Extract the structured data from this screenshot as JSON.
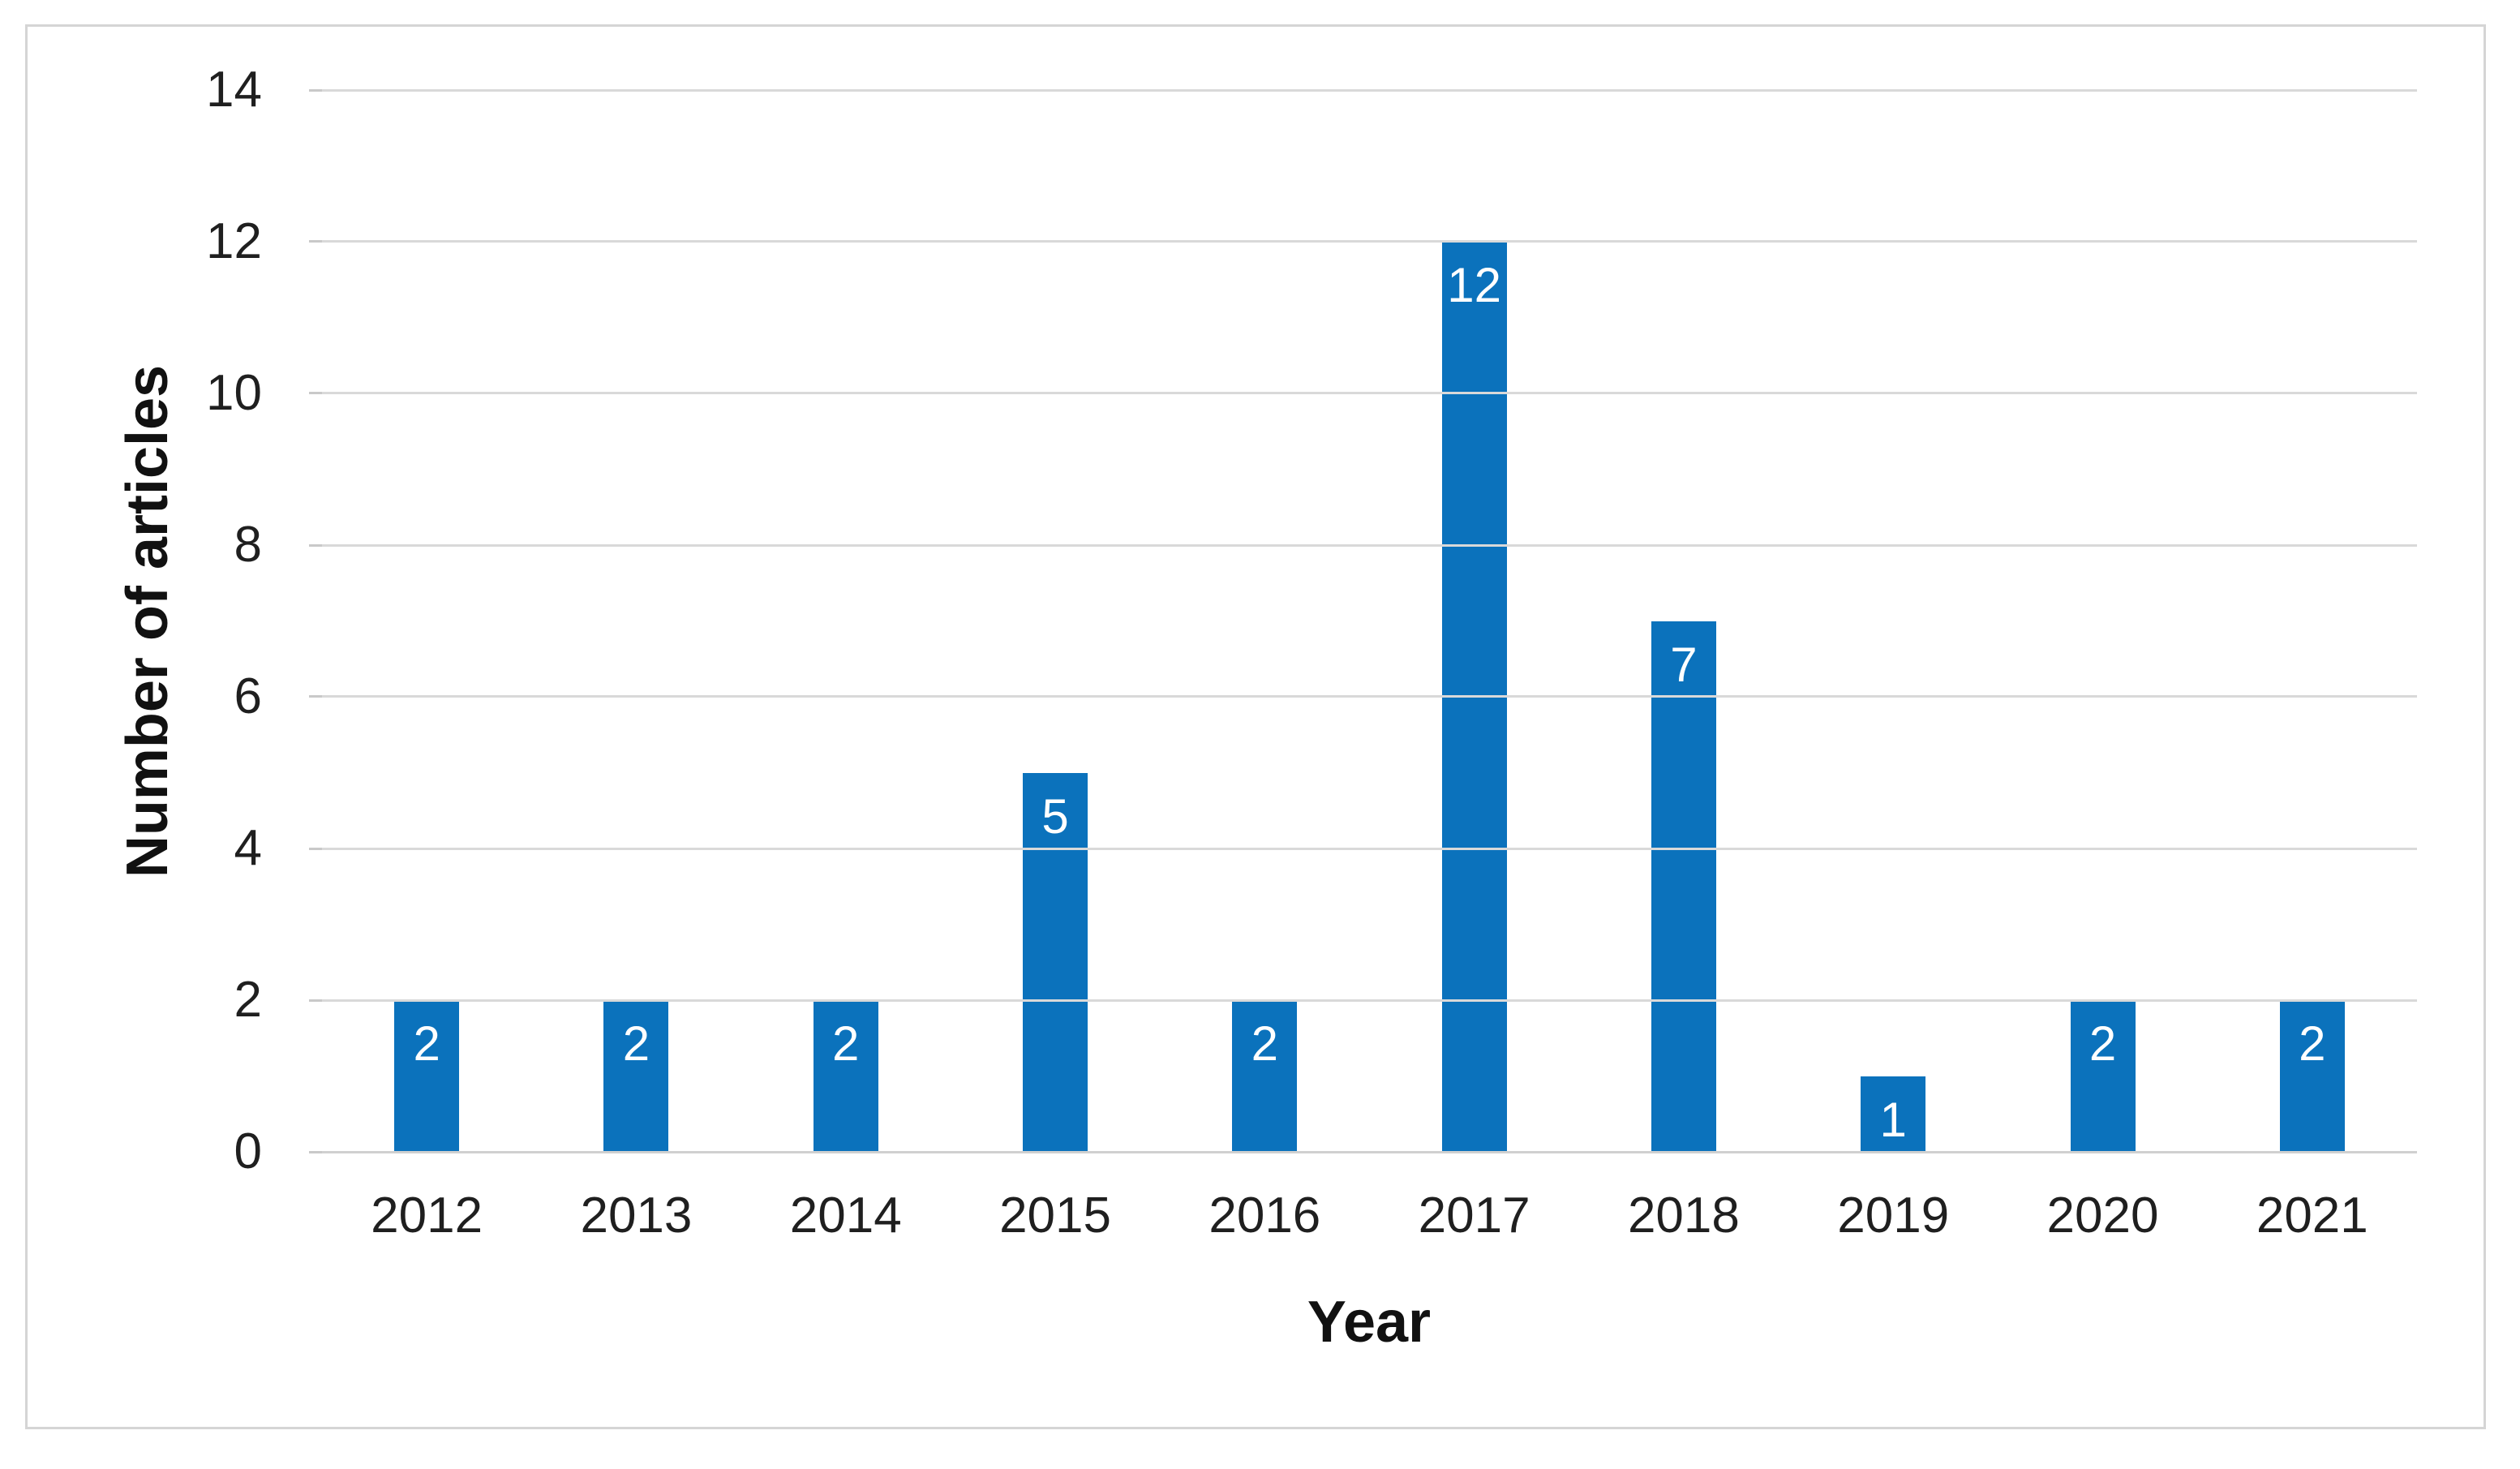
{
  "chart_data": {
    "type": "bar",
    "title": "",
    "categories": [
      "2012",
      "2013",
      "2014",
      "2015",
      "2016",
      "2017",
      "2018",
      "2019",
      "2020",
      "2021"
    ],
    "values": [
      2,
      2,
      2,
      5,
      2,
      12,
      7,
      1,
      2,
      2
    ],
    "data_labels": [
      "2",
      "2",
      "2",
      "5",
      "2",
      "12",
      "7",
      "1",
      "2",
      "2"
    ],
    "xlabel": "Year",
    "ylabel": "Number of articles",
    "yticks": [
      0,
      2,
      4,
      6,
      8,
      10,
      12,
      14
    ],
    "ylim": [
      0,
      14
    ],
    "grid": "horizontal",
    "legend_position": "none",
    "colors": {
      "bar": "#0b72bc",
      "data_label": "#ffffff",
      "gridline": "#d9d9d9",
      "axis_line": "#d0d0d0",
      "tick_mark": "#c9c9c9",
      "tick_label": "#1f1f1f",
      "frame_border": "#d5d5d5",
      "background": "#ffffff"
    }
  }
}
